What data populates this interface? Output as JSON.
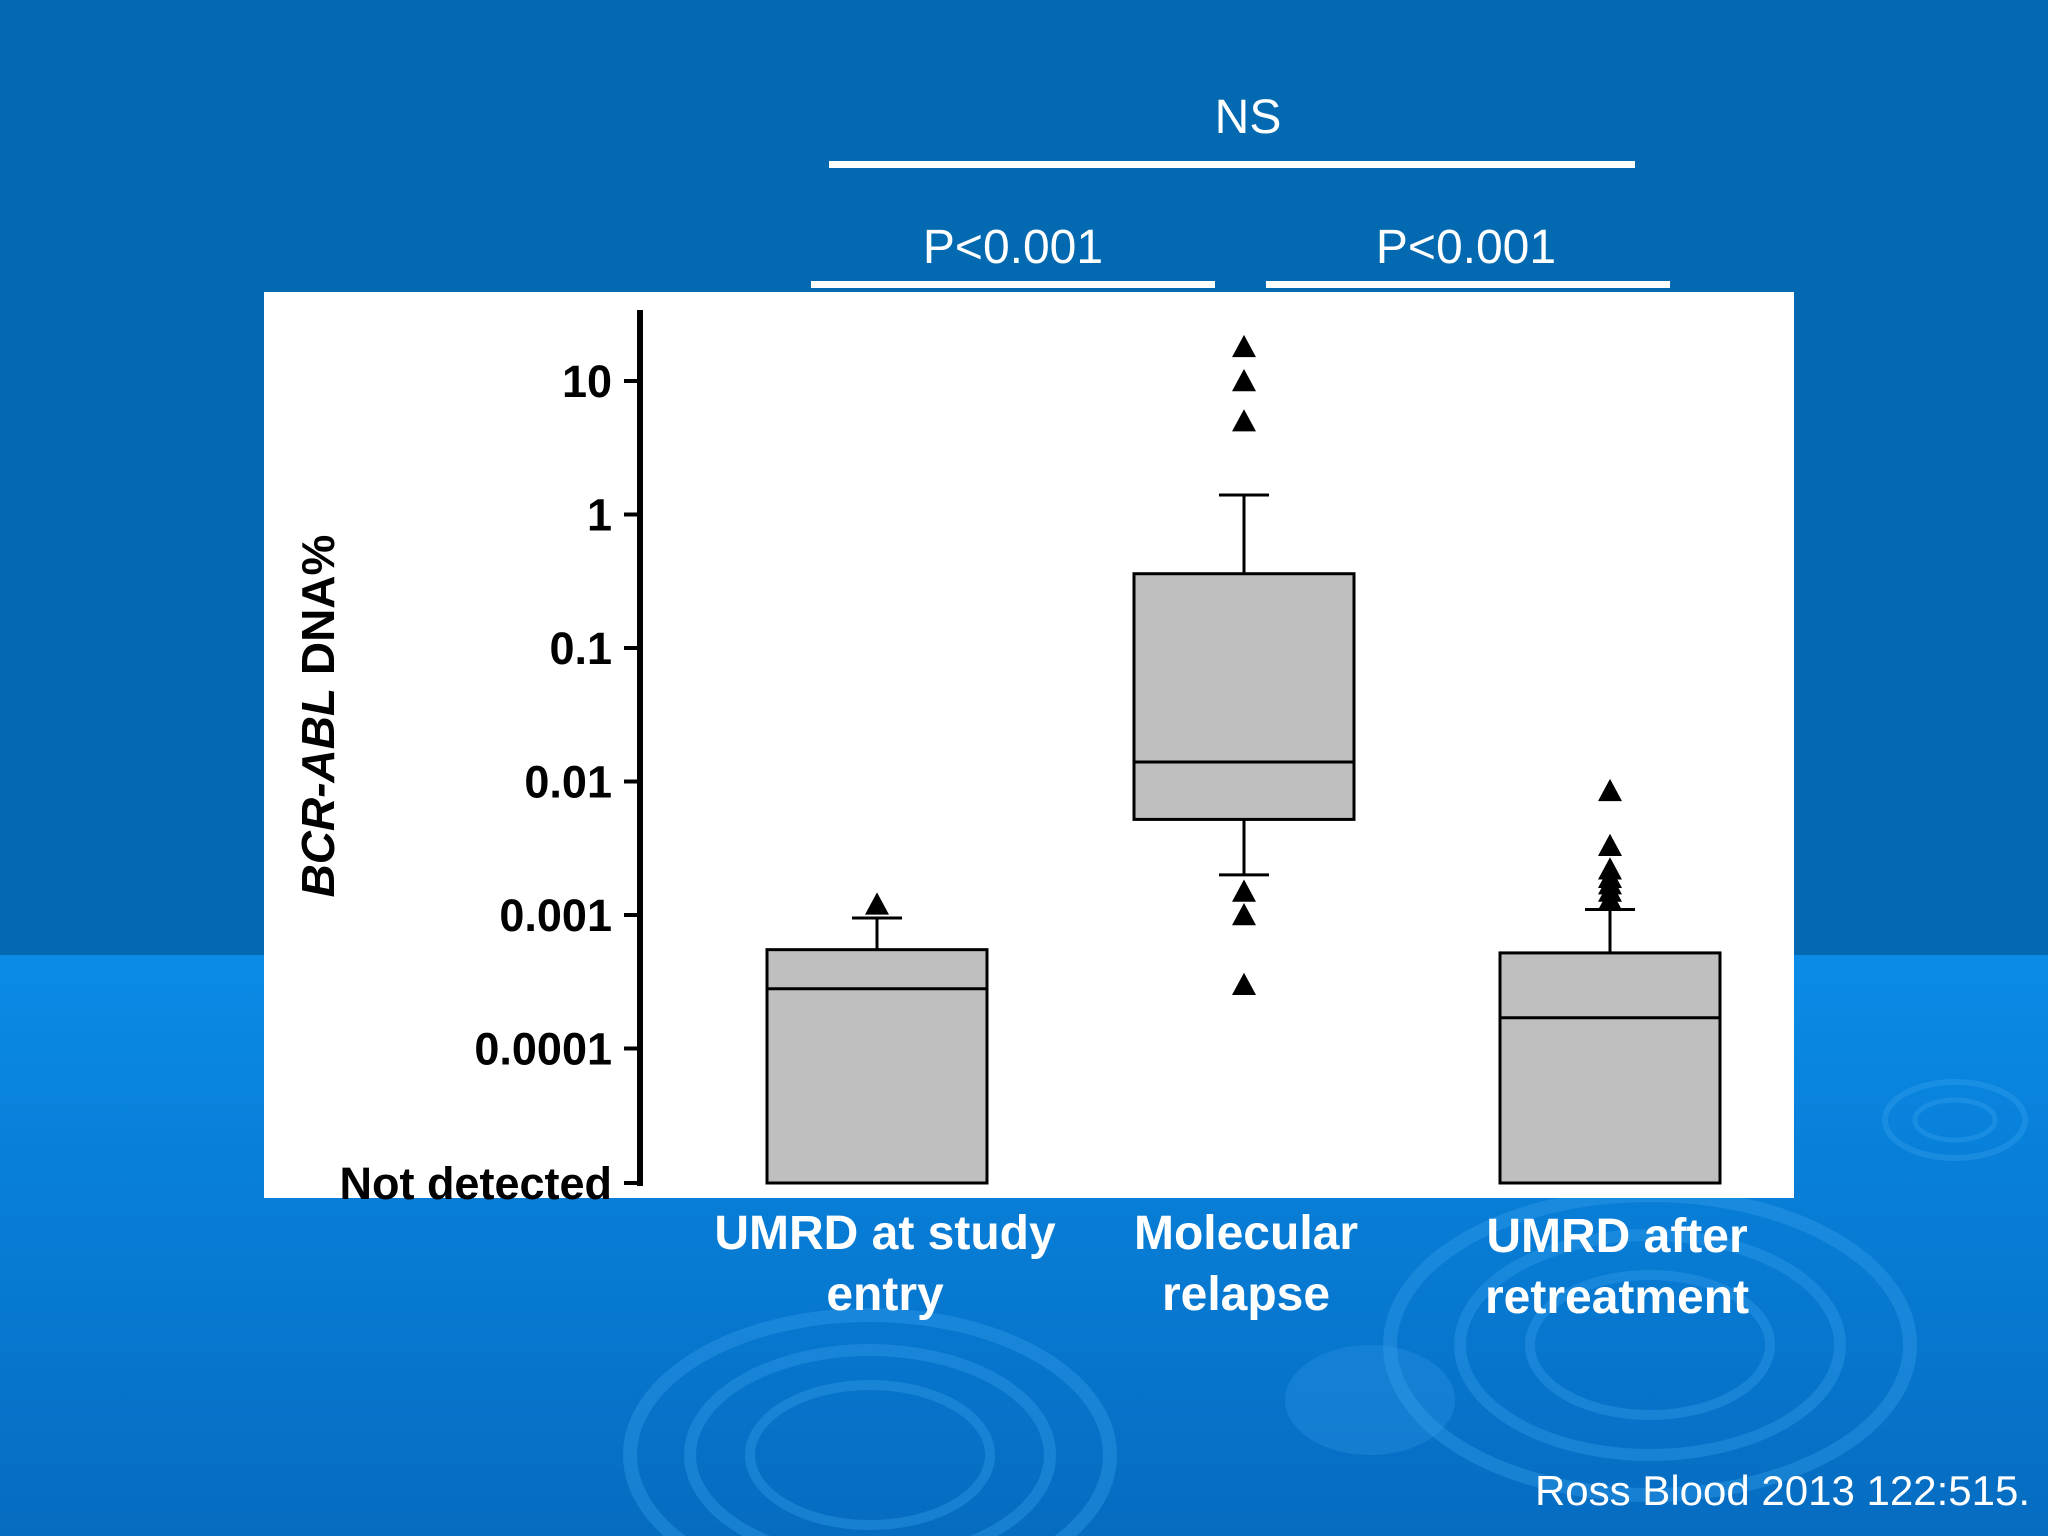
{
  "chart_data": {
    "type": "box",
    "title": "",
    "ylabel": {
      "italic": "BCR-ABL",
      "rest": " DNA%"
    },
    "yscale": "log",
    "yticks": [
      {
        "value": "not_detected",
        "label": "Not detected"
      },
      {
        "value": 0.0001,
        "label": "0.0001"
      },
      {
        "value": 0.001,
        "label": "0.001"
      },
      {
        "value": 0.01,
        "label": "0.01"
      },
      {
        "value": 0.1,
        "label": "0.1"
      },
      {
        "value": 1,
        "label": "1"
      },
      {
        "value": 10,
        "label": "10"
      }
    ],
    "categories": [
      {
        "line1": "UMRD at study",
        "line2": "entry"
      },
      {
        "line1": "Molecular",
        "line2": "relapse"
      },
      {
        "line1": "UMRD after",
        "line2": "retreatment"
      }
    ],
    "boxes": [
      {
        "min": "not_detected",
        "q1": "not_detected",
        "median": 0.00028,
        "q3": 0.00055,
        "whisker_high": 0.00095,
        "outliers": [
          0.0012
        ]
      },
      {
        "whisker_low": 0.002,
        "q1": 0.0052,
        "median": 0.014,
        "q3": 0.36,
        "whisker_high": 1.4,
        "outliers": [
          18,
          10,
          5,
          0.0015,
          0.001,
          0.0003
        ]
      },
      {
        "min": "not_detected",
        "q1": "not_detected",
        "median": 0.00017,
        "q3": 0.00052,
        "whisker_high": 0.0011,
        "outliers": [
          0.0085,
          0.0033,
          0.0022,
          0.0019,
          0.0017,
          0.0015,
          0.0013
        ]
      }
    ],
    "comparisons": [
      {
        "groups": [
          0,
          1
        ],
        "label": "P<0.001"
      },
      {
        "groups": [
          1,
          2
        ],
        "label": "P<0.001"
      },
      {
        "groups": [
          0,
          2
        ],
        "label": "NS"
      }
    ],
    "colors": {
      "box_fill": "#c0bfc0",
      "outlier": "#000000",
      "background": "#0369b1"
    }
  },
  "citation": "Ross Blood 2013 122:515."
}
